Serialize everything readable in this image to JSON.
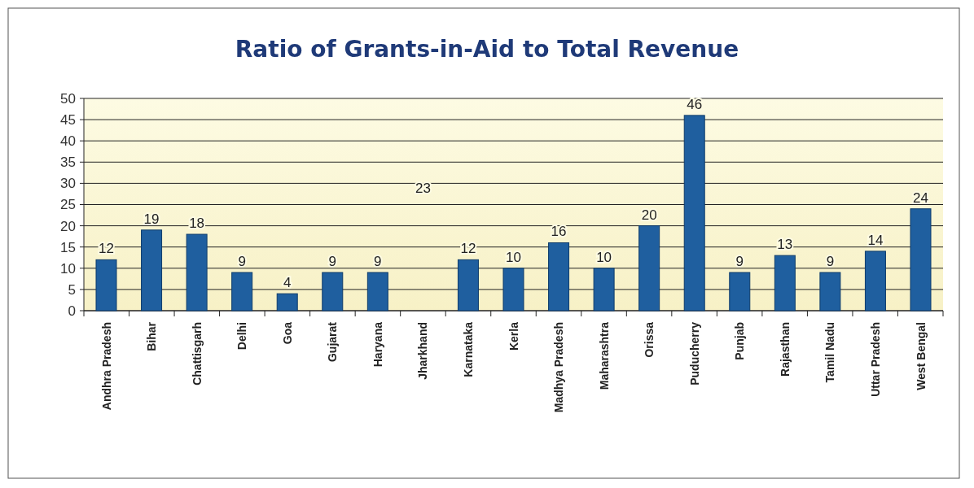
{
  "chart_data": {
    "type": "bar",
    "title": "Ratio of Grants-in-Aid to Total Revenue",
    "categories": [
      "Andhra Pradesh",
      "Bihar",
      "Chattisgarh",
      "Delhi",
      "Goa",
      "Gujarat",
      "Haryana",
      "Jharkhand",
      "Karnataka",
      "Kerla",
      "Madhya Pradesh",
      "Maharashtra",
      "Orissa",
      "Puducherry",
      "Punjab",
      "Rajasthan",
      "Tamil Nadu",
      "Uttar Pradesh",
      "West Bengal"
    ],
    "values": [
      12,
      19,
      18,
      9,
      4,
      9,
      9,
      null,
      12,
      10,
      16,
      10,
      20,
      46,
      9,
      13,
      9,
      14,
      24
    ],
    "color": "#1f5f9f",
    "data_labels": true,
    "annotations": [
      "23"
    ],
    "ylim": [
      0,
      50
    ],
    "yticks": [
      0,
      5,
      10,
      15,
      20,
      25,
      30,
      35,
      40,
      45,
      50
    ],
    "grid": "y"
  }
}
